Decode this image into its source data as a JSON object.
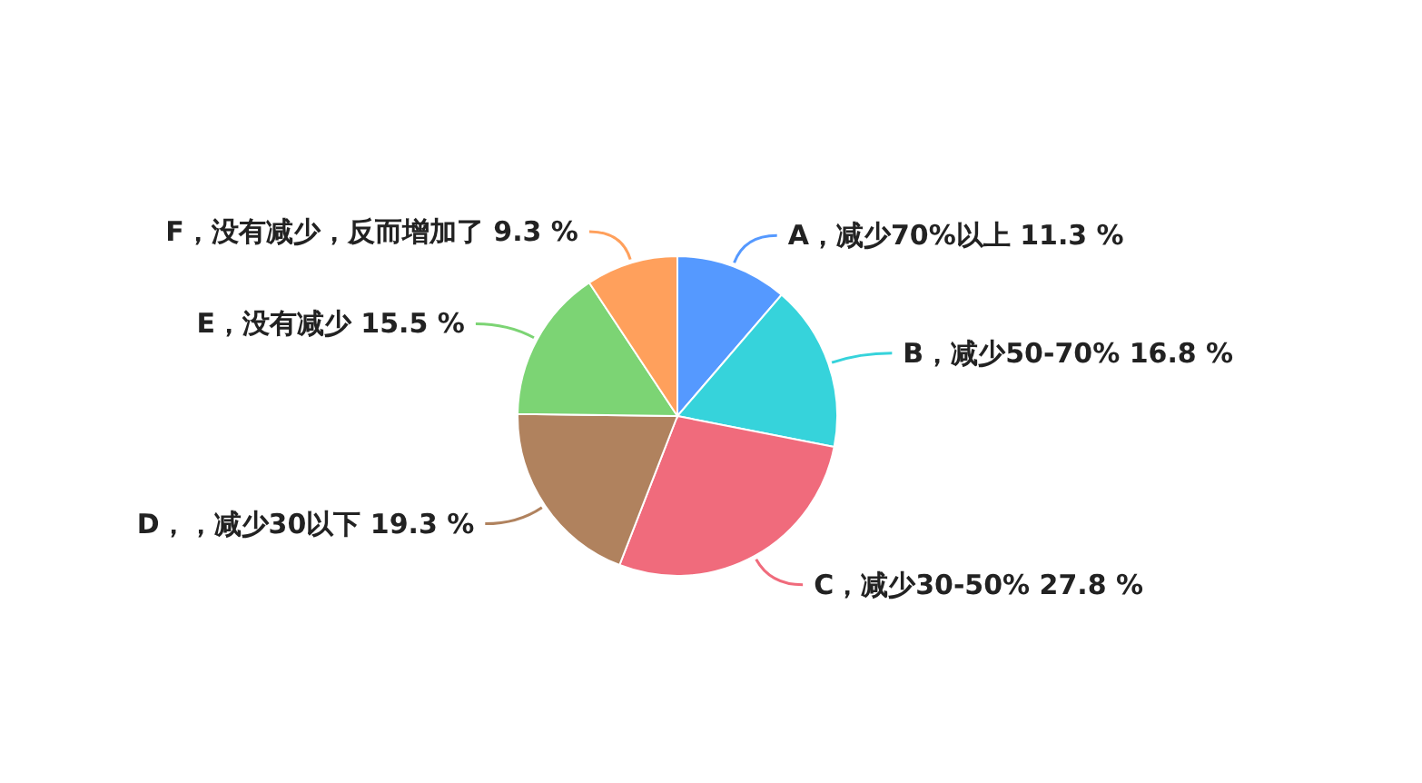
{
  "chart_data": {
    "type": "pie",
    "categories": [
      "A，减少70%以上",
      "B，减少50-70%",
      "C，减少30-50%",
      "D，，减少30以下",
      "E，没有减少",
      "F，没有减少，反而增加了"
    ],
    "values": [
      11.3,
      16.8,
      27.8,
      19.3,
      15.5,
      9.3
    ],
    "value_labels": [
      "11.3 %",
      "16.8 %",
      "27.8 %",
      "19.3 %",
      "15.5 %",
      "9.3 %"
    ],
    "colors": [
      "#5599ff",
      "#36d3db",
      "#f06b7c",
      "#b0825e",
      "#7cd474",
      "#ffa05c"
    ]
  }
}
